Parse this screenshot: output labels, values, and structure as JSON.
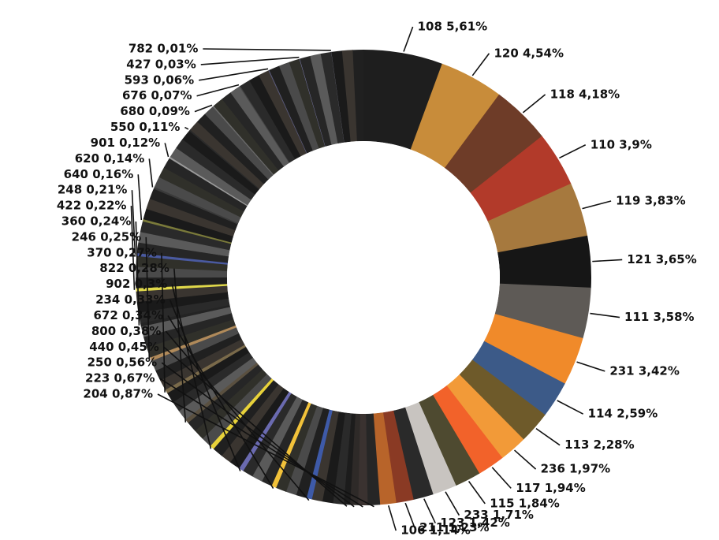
{
  "chart_data": {
    "type": "pie",
    "variant": "donut",
    "title": "",
    "series": [
      {
        "label": "108",
        "percent_text": "5,61%",
        "value": 5.61,
        "color": "#1e1e1e"
      },
      {
        "label": "120",
        "percent_text": "4,54%",
        "value": 4.54,
        "color": "#c88c3a"
      },
      {
        "label": "118",
        "percent_text": "4,18%",
        "value": 4.18,
        "color": "#6e3c28"
      },
      {
        "label": "110",
        "percent_text": "3,9%",
        "value": 3.9,
        "color": "#b23a2a"
      },
      {
        "label": "119",
        "percent_text": "3,83%",
        "value": 3.83,
        "color": "#a6793e"
      },
      {
        "label": "121",
        "percent_text": "3,65%",
        "value": 3.65,
        "color": "#161616"
      },
      {
        "label": "111",
        "percent_text": "3,58%",
        "value": 3.58,
        "color": "#5e5a56"
      },
      {
        "label": "231",
        "percent_text": "3,42%",
        "value": 3.42,
        "color": "#f08a2a"
      },
      {
        "label": "114",
        "percent_text": "2,59%",
        "value": 2.59,
        "color": "#3c5a88"
      },
      {
        "label": "113",
        "percent_text": "2,28%",
        "value": 2.28,
        "color": "#6e5a2a"
      },
      {
        "label": "236",
        "percent_text": "1,97%",
        "value": 1.97,
        "color": "#f29a38"
      },
      {
        "label": "117",
        "percent_text": "1,94%",
        "value": 1.94,
        "color": "#f2622a"
      },
      {
        "label": "115",
        "percent_text": "1,84%",
        "value": 1.84,
        "color": "#4e4a30"
      },
      {
        "label": "233",
        "percent_text": "1,71%",
        "value": 1.71,
        "color": "#c8c4c0"
      },
      {
        "label": "123",
        "percent_text": "1,42%",
        "value": 1.42,
        "color": "#2a2a2a"
      },
      {
        "label": "211",
        "percent_text": "1,23%",
        "value": 1.23,
        "color": "#8a3a24"
      },
      {
        "label": "106",
        "percent_text": "1,14%",
        "value": 1.14,
        "color": "#b8642a"
      },
      {
        "label": "204",
        "percent_text": "0,87%",
        "value": 0.87,
        "color": "#262626"
      },
      {
        "label": "223",
        "percent_text": "0,67%",
        "value": 0.67,
        "color": "#3a3230"
      },
      {
        "label": "250",
        "percent_text": "0,56%",
        "value": 0.56,
        "color": "#2e2a28"
      },
      {
        "label": "440",
        "percent_text": "0,45%",
        "value": 0.45,
        "color": "#1c1c1c"
      },
      {
        "label": "800",
        "percent_text": "0,38%",
        "value": 0.38,
        "color": "#3e5aa8"
      },
      {
        "label": "672",
        "percent_text": "0,34%",
        "value": 0.34,
        "color": "#f2c23a"
      },
      {
        "label": "234",
        "percent_text": "0,33%",
        "value": 0.33,
        "color": "#6a6ab0"
      },
      {
        "label": "902",
        "percent_text": "0,3%",
        "value": 0.3,
        "color": "#e8d23a"
      },
      {
        "label": "822",
        "percent_text": "0,28%",
        "value": 0.28,
        "color": "#5a5040"
      },
      {
        "label": "370",
        "percent_text": "0,27%",
        "value": 0.27,
        "color": "#7a6a4a"
      },
      {
        "label": "246",
        "percent_text": "0,25%",
        "value": 0.25,
        "color": "#b08a5a"
      },
      {
        "label": "360",
        "percent_text": "0,24%",
        "value": 0.24,
        "color": "#242424"
      },
      {
        "label": "422",
        "percent_text": "0,22%",
        "value": 0.22,
        "color": "#e0d84a"
      },
      {
        "label": "248",
        "percent_text": "0,21%",
        "value": 0.21,
        "color": "#4a5aa0"
      },
      {
        "label": "640",
        "percent_text": "0,16%",
        "value": 0.16,
        "color": "#7a7a3a"
      },
      {
        "label": "620",
        "percent_text": "0,14%",
        "value": 0.14,
        "color": "#3a3a3a"
      },
      {
        "label": "901",
        "percent_text": "0,12%",
        "value": 0.12,
        "color": "#9a9a9a"
      },
      {
        "label": "550",
        "percent_text": "0,11%",
        "value": 0.11,
        "color": "#2a2a2a"
      },
      {
        "label": "680",
        "percent_text": "0,09%",
        "value": 0.09,
        "color": "#6a6a6a"
      },
      {
        "label": "676",
        "percent_text": "0,07%",
        "value": 0.07,
        "color": "#444444"
      },
      {
        "label": "593",
        "percent_text": "0,06%",
        "value": 0.06,
        "color": "#5a5a7a"
      },
      {
        "label": "427",
        "percent_text": "0,03%",
        "value": 0.03,
        "color": "#7a7aaa"
      },
      {
        "label": "782",
        "percent_text": "0,01%",
        "value": 0.01,
        "color": "#8a8aa0"
      }
    ]
  }
}
